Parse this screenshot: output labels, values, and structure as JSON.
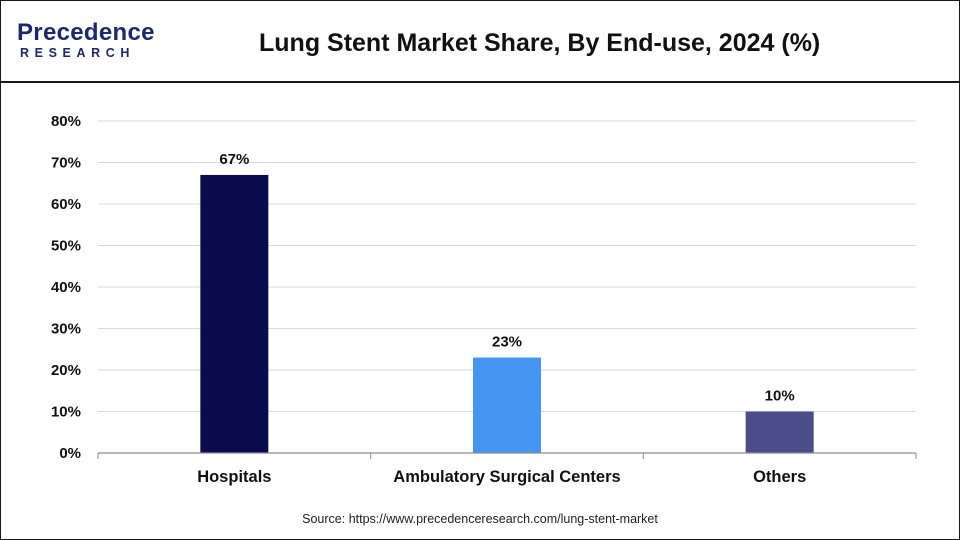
{
  "header": {
    "logo_main": "Precedence",
    "logo_sub": "RESEARCH",
    "title": "Lung Stent Market Share, By End-use, 2024 (%)"
  },
  "source": "Source: https://www.precedenceresearch.com/lung-stent-market",
  "colors": {
    "logo": "#1b2a6b",
    "grid": "#d9d9d9",
    "axis": "#8c8c8c"
  },
  "chart_data": {
    "type": "bar",
    "categories": [
      "Hospitals",
      "Ambulatory Surgical Centers",
      "Others"
    ],
    "values": [
      67,
      23,
      10
    ],
    "data_labels": [
      "67%",
      "23%",
      "10%"
    ],
    "bar_colors": [
      "#0a0a4f",
      "#4496f2",
      "#4b4d8a"
    ],
    "ylim": [
      0,
      80
    ],
    "yticks": [
      0,
      10,
      20,
      30,
      40,
      50,
      60,
      70,
      80
    ],
    "ytick_labels": [
      "0%",
      "10%",
      "20%",
      "30%",
      "40%",
      "50%",
      "60%",
      "70%",
      "80%"
    ],
    "grid": true,
    "legend": "none",
    "title": "Lung Stent Market Share, By End-use, 2024 (%)"
  }
}
